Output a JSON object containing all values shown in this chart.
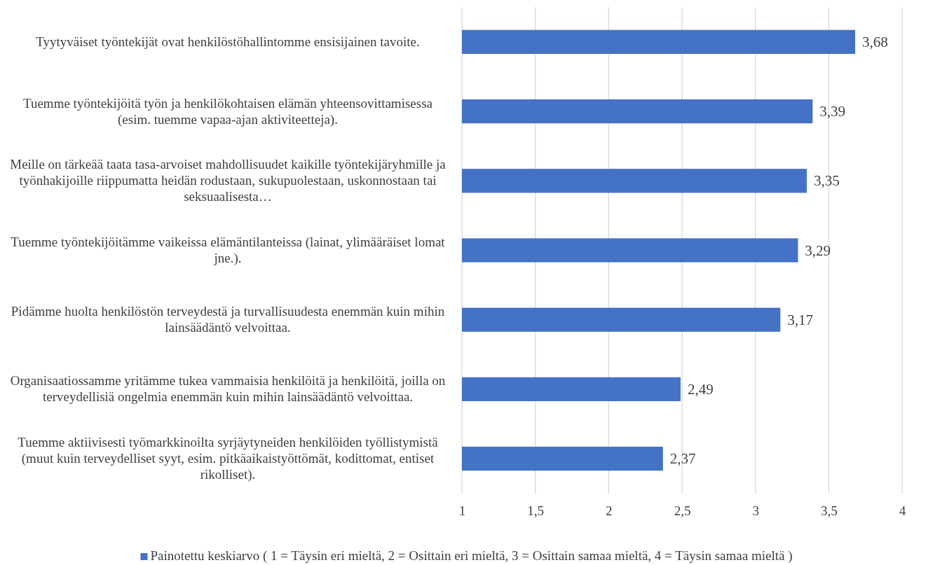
{
  "chart_data": {
    "type": "bar",
    "orientation": "horizontal",
    "categories": [
      "Tyytyväiset työntekijät ovat henkilöstöhallintomme ensisijainen tavoite.",
      "Tuemme työntekijöitä työn ja henkilökohtaisen elämän yhteensovittamisessa (esim. tuemme vapaa-ajan aktiviteetteja).",
      "Meille on tärkeää taata tasa-arvoiset mahdollisuudet kaikille työntekijäryhmille ja työnhakijoille riippumatta heidän rodustaan, sukupuolestaan, uskonnostaan tai seksuaalisesta…",
      "Tuemme työntekijöitämme vaikeissa elämäntilanteissa (lainat, ylimääräiset lomat jne.).",
      "Pidämme huolta henkilöstön terveydestä ja turvallisuudesta enemmän kuin mihin lainsäädäntö velvoittaa.",
      "Organisaatiossamme yritämme tukea vammaisia henkilöitä ja henkilöitä, joilla on terveydellisiä ongelmia enemmän kuin mihin lainsäädäntö velvoittaa.",
      "Tuemme aktiivisesti työmarkkinoilta syrjäytyneiden henkilöiden työllistymistä (muut kuin terveydelliset syyt, esim. pitkäaikaistyöttömät, kodittomat, entiset rikolliset)."
    ],
    "series": [
      {
        "name": "Painotettu keskiarvo ( 1 = Täysin eri mieltä, 2 = Osittain eri mieltä, 3 = Osittain samaa mieltä, 4 = Täysin samaa mieltä )",
        "color": "#4472c4",
        "values": [
          3.68,
          3.39,
          3.35,
          3.29,
          3.17,
          2.49,
          2.37
        ],
        "value_labels": [
          "3,68",
          "3,39",
          "3,35",
          "3,29",
          "3,17",
          "2,49",
          "2,37"
        ]
      }
    ],
    "xlim": [
      1,
      4
    ],
    "xticks": [
      1,
      {
        "value": 1.5,
        "label": "1,5"
      },
      2,
      {
        "value": 2.5,
        "label": "2,5"
      },
      3,
      {
        "value": 3.5,
        "label": "3,5"
      },
      4
    ],
    "grid": "x",
    "legend": "bottom"
  }
}
